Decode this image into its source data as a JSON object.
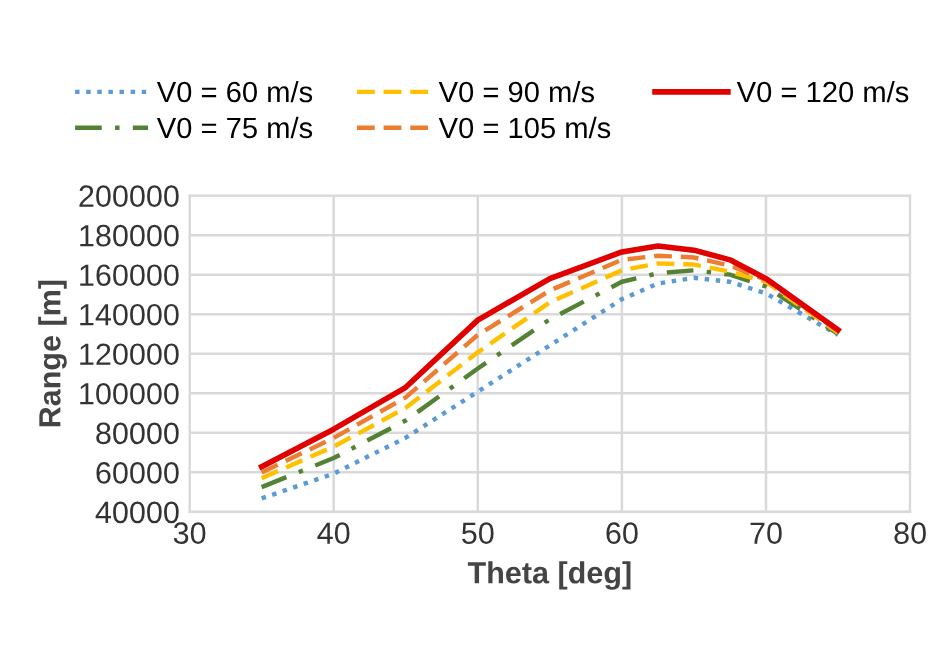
{
  "chart_data": {
    "type": "line",
    "xlabel": "Theta [deg]",
    "ylabel": "Range [m]",
    "x": [
      35,
      40,
      45,
      50,
      55,
      60,
      62.5,
      65,
      67.5,
      70,
      75
    ],
    "series": [
      {
        "name": "V0 = 60 m/s",
        "color": "#5b9bd5",
        "line_style": "dotted",
        "values": [
          46800,
          59300,
          77500,
          100800,
          124200,
          147600,
          155500,
          158400,
          156400,
          150500,
          129500
        ]
      },
      {
        "name": "V0 = 75 m/s",
        "color": "#548235",
        "line_style": "dashdot",
        "values": [
          52500,
          67200,
          86200,
          112500,
          137400,
          156400,
          160700,
          162200,
          160000,
          154000,
          130000
        ]
      },
      {
        "name": "V0 = 90 m/s",
        "color": "#ffc000",
        "line_style": "dashed",
        "values": [
          57000,
          73000,
          92600,
          120700,
          146000,
          162200,
          165700,
          165100,
          161500,
          156400,
          130600
        ]
      },
      {
        "name": "V0 = 105 m/s",
        "color": "#ed7d31",
        "line_style": "dashed",
        "values": [
          59900,
          77400,
          97900,
          129500,
          152000,
          167500,
          169600,
          168700,
          164600,
          157300,
          131500
        ]
      },
      {
        "name": "V0 = 120 m/s",
        "color": "#e00000",
        "line_style": "solid",
        "values": [
          62800,
          81800,
          103000,
          137000,
          158000,
          171500,
          174500,
          172400,
          167500,
          158000,
          132000
        ]
      }
    ],
    "xlim": [
      30,
      80
    ],
    "xticks": [
      30,
      40,
      50,
      60,
      70,
      80
    ],
    "ylim": [
      40000,
      200000
    ],
    "yticks": [
      40000,
      60000,
      80000,
      100000,
      120000,
      140000,
      160000,
      180000,
      200000
    ],
    "grid": true,
    "legend": "top",
    "marker": "none"
  }
}
